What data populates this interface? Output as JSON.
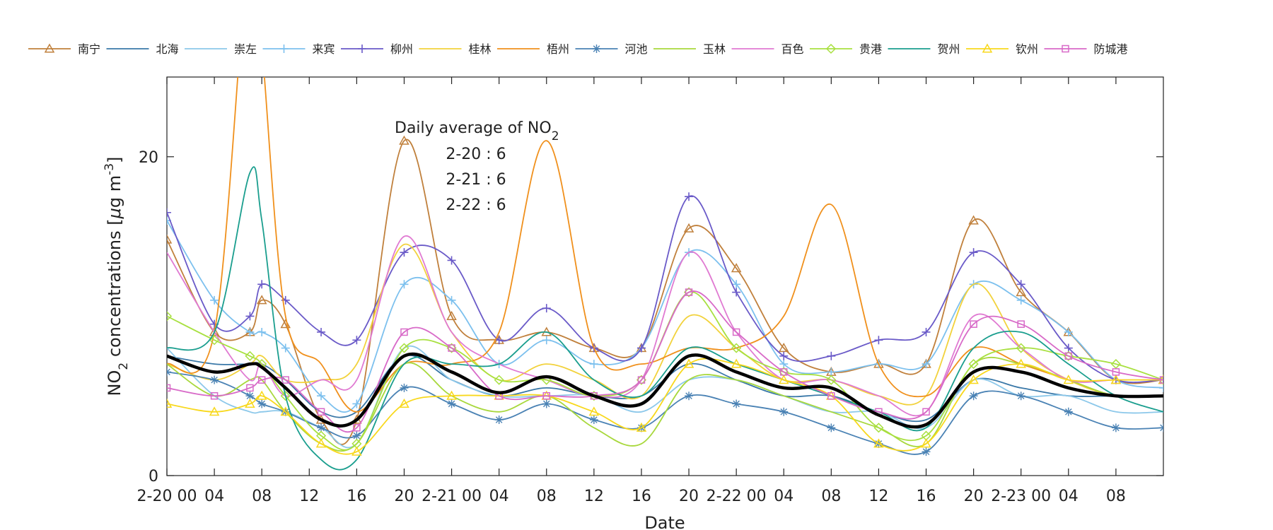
{
  "chart_data": {
    "type": "line",
    "title": "",
    "xlabel": "Date",
    "ylabel": "NO",
    "ylabel_sub": "2",
    "ylabel_tail": " concentrations [",
    "ylabel_mu": "μ",
    "ylabel_unit": "g m",
    "ylabel_sup": "-3",
    "ylabel_close": "]",
    "ylim": [
      0,
      25
    ],
    "yticks": [
      0,
      20
    ],
    "xlim": [
      0,
      84
    ],
    "xticks": [
      {
        "x": 0,
        "label": "2-20 00"
      },
      {
        "x": 4,
        "label": "04"
      },
      {
        "x": 8,
        "label": "08"
      },
      {
        "x": 12,
        "label": "12"
      },
      {
        "x": 16,
        "label": "16"
      },
      {
        "x": 20,
        "label": "20"
      },
      {
        "x": 24,
        "label": "2-21 00"
      },
      {
        "x": 28,
        "label": "04"
      },
      {
        "x": 32,
        "label": "08"
      },
      {
        "x": 36,
        "label": "12"
      },
      {
        "x": 40,
        "label": "16"
      },
      {
        "x": 44,
        "label": "20"
      },
      {
        "x": 48,
        "label": "2-22 00"
      },
      {
        "x": 52,
        "label": "04"
      },
      {
        "x": 56,
        "label": "08"
      },
      {
        "x": 60,
        "label": "12"
      },
      {
        "x": 64,
        "label": "16"
      },
      {
        "x": 68,
        "label": "20"
      },
      {
        "x": 72,
        "label": "2-23 00"
      },
      {
        "x": 76,
        "label": "04"
      },
      {
        "x": 80,
        "label": "08"
      }
    ],
    "annotation": {
      "title": "Daily average of NO",
      "title_sub": "2",
      "lines": [
        "2-20 : 6",
        "2-21 : 6",
        "2-22 : 6"
      ]
    },
    "legend_position": "top",
    "x": [
      0,
      4,
      7,
      8,
      10,
      13,
      16,
      20,
      24,
      28,
      32,
      36,
      40,
      44,
      48,
      52,
      56,
      60,
      64,
      68,
      72,
      76,
      80,
      84
    ],
    "series": [
      {
        "name": "南宁",
        "color": "#c0803c",
        "marker": "triangle",
        "values": [
          14.8,
          9,
          9,
          11,
          9.5,
          3.5,
          3.5,
          21,
          10,
          8.5,
          9,
          8,
          8,
          15.5,
          13,
          8,
          6.5,
          7,
          7,
          16,
          11.5,
          9,
          6,
          6
        ]
      },
      {
        "name": "北海",
        "color": "#3a78a8",
        "marker": "none",
        "values": [
          7.5,
          7,
          7,
          7,
          6,
          4,
          4,
          7.5,
          6,
          5,
          5.5,
          5,
          5,
          7,
          6,
          5,
          5,
          4,
          3.5,
          6,
          5.5,
          5,
          5,
          5
        ]
      },
      {
        "name": "崇左",
        "color": "#8cc8ea",
        "marker": "none",
        "values": [
          8,
          5,
          4,
          4,
          4,
          3,
          2,
          8,
          6,
          5,
          5,
          5,
          4,
          6,
          6,
          5,
          4,
          4,
          3,
          6,
          5,
          5,
          4,
          4
        ]
      },
      {
        "name": "来宾",
        "color": "#7cc0ee",
        "marker": "plus",
        "values": [
          16,
          11,
          9,
          9,
          8,
          5,
          4.5,
          12,
          11,
          7,
          8.5,
          7,
          8,
          14,
          12,
          7,
          6.5,
          7,
          7,
          12,
          11,
          9,
          6,
          5.5
        ]
      },
      {
        "name": "柳州",
        "color": "#6a5ac8",
        "marker": "plus",
        "values": [
          16.5,
          9.5,
          10,
          12,
          11,
          9,
          8.5,
          14,
          13.5,
          8.5,
          10.5,
          8,
          8,
          17.5,
          11.5,
          7.5,
          7.5,
          8.5,
          9,
          14,
          12,
          8,
          6,
          6
        ]
      },
      {
        "name": "桂林",
        "color": "#f2d23c",
        "marker": "none",
        "values": [
          7,
          6,
          7,
          7.5,
          6,
          6,
          7,
          14.5,
          9,
          6,
          7,
          6,
          5,
          10,
          8,
          6,
          6,
          5,
          5,
          12,
          8,
          6,
          5,
          5
        ]
      },
      {
        "name": "梧州",
        "color": "#f0901c",
        "marker": "none",
        "values": [
          7,
          9,
          34,
          27,
          10,
          7,
          4,
          7,
          7,
          9,
          21,
          8,
          7,
          8,
          8,
          10,
          17,
          7,
          5,
          8,
          7,
          6,
          5,
          5
        ]
      },
      {
        "name": "河池",
        "color": "#4a82b4",
        "marker": "star",
        "values": [
          6.5,
          6,
          5,
          4.5,
          4,
          3,
          2.5,
          5.5,
          4.5,
          3.5,
          4.5,
          3.5,
          3,
          5,
          4.5,
          4,
          3,
          2,
          1.5,
          5,
          5,
          4,
          3,
          3
        ]
      },
      {
        "name": "玉林",
        "color": "#a8d83c",
        "marker": "none",
        "values": [
          7,
          5,
          6,
          6,
          4,
          2,
          2,
          7,
          5,
          4,
          5,
          3,
          2,
          6,
          6,
          5,
          4,
          3,
          2,
          7,
          7,
          6,
          5,
          5
        ]
      },
      {
        "name": "百色",
        "color": "#e07ad2",
        "marker": "none",
        "values": [
          14,
          9,
          6,
          7,
          5,
          6,
          6,
          15,
          9,
          7,
          6,
          5,
          6,
          14,
          9,
          6,
          6,
          5,
          4,
          10,
          8,
          6,
          6,
          6
        ]
      },
      {
        "name": "贵港",
        "color": "#a8e040",
        "marker": "diamond",
        "values": [
          10,
          8.5,
          7.5,
          7,
          5,
          2.5,
          2,
          8,
          8,
          6,
          6,
          5,
          6,
          11.5,
          8,
          6.5,
          6,
          3,
          2.5,
          7,
          8,
          7.5,
          7,
          6
        ]
      },
      {
        "name": "贺州",
        "color": "#1a9e8e",
        "marker": "none",
        "values": [
          8,
          9,
          19,
          16,
          5,
          1,
          1,
          7,
          7,
          7,
          9,
          6,
          5,
          8,
          7,
          6,
          5,
          4,
          3,
          8,
          9,
          7,
          5,
          4
        ]
      },
      {
        "name": "钦州",
        "color": "#f8d81c",
        "marker": "triangle",
        "values": [
          4.5,
          4,
          4.5,
          5,
          4,
          2,
          1.5,
          4.5,
          5,
          5,
          5,
          4,
          3,
          7,
          7,
          6,
          5,
          2,
          2,
          6,
          7,
          6,
          6,
          6
        ]
      },
      {
        "name": "防城港",
        "color": "#d86ac8",
        "marker": "square",
        "values": [
          5.5,
          5,
          5.5,
          6,
          6,
          4,
          3,
          9,
          8,
          5,
          5,
          5,
          6,
          11.5,
          9,
          6.5,
          5,
          4,
          4,
          9.5,
          9.5,
          7.5,
          6.5,
          6
        ]
      },
      {
        "name": "",
        "color": "#000000",
        "marker": "none",
        "values": [
          7.5,
          6.5,
          7,
          6.8,
          5.5,
          3.5,
          3.5,
          7.5,
          6.5,
          5.2,
          6.2,
          5,
          4.5,
          7.5,
          6.5,
          5.5,
          5.5,
          3.8,
          3.2,
          6.5,
          6.5,
          5.5,
          5,
          5
        ]
      }
    ]
  }
}
